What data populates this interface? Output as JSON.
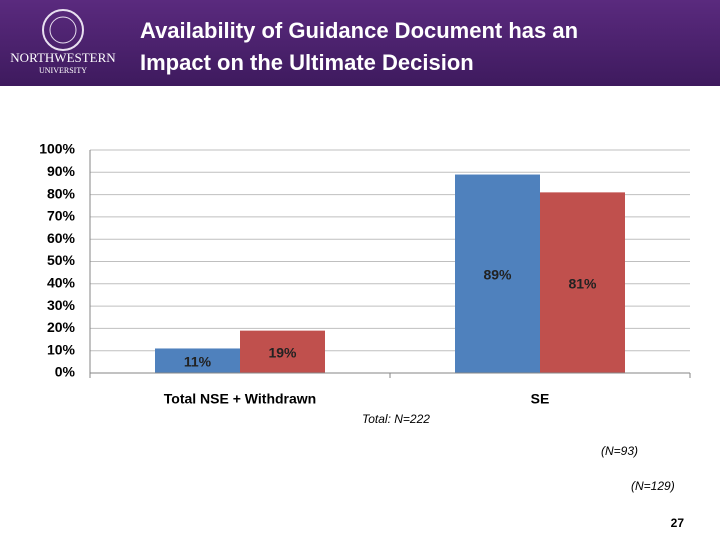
{
  "header": {
    "title": [
      "Availability of Guidance Document has an",
      "Impact on the Ultimate Decision"
    ],
    "logo": [
      "NORTHWESTERN",
      "UNIVERSITY"
    ]
  },
  "chart_data": {
    "type": "bar",
    "categories": [
      "Total NSE + Withdrawn",
      "SE"
    ],
    "series": [
      {
        "color": "#4f81bd",
        "values": [
          11,
          89
        ],
        "value_labels": [
          "11%",
          "89%"
        ]
      },
      {
        "color": "#c0504d",
        "values": [
          19,
          81
        ],
        "value_labels": [
          "19%",
          "81%"
        ]
      }
    ],
    "ylim": [
      0,
      100
    ],
    "yticks": [
      {
        "value": 0,
        "label": "0%"
      },
      {
        "value": 10,
        "label": "10%"
      },
      {
        "value": 20,
        "label": "20%"
      },
      {
        "value": 30,
        "label": "30%"
      },
      {
        "value": 40,
        "label": "40%"
      },
      {
        "value": 50,
        "label": "50%"
      },
      {
        "value": 60,
        "label": "60%"
      },
      {
        "value": 70,
        "label": "70%"
      },
      {
        "value": 80,
        "label": "80%"
      },
      {
        "value": 90,
        "label": "90%"
      },
      {
        "value": 100,
        "label": "100%"
      }
    ],
    "grid": true
  },
  "notes": [
    "Total: N=222",
    "(N=93)",
    "(N=129)"
  ],
  "page_number": "27"
}
